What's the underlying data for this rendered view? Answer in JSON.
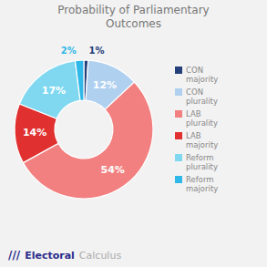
{
  "chart_data": {
    "type": "pie",
    "title": "Probability of Parliamentary\nOutcomes",
    "categories": [
      "CON\nmajority",
      "CON\nplurality",
      "LAB\nplurality",
      "LAB\nmajority",
      "Reform\nplurality",
      "Reform\nmajority"
    ],
    "values": [
      1,
      12,
      54,
      14,
      17,
      2
    ],
    "value_labels": [
      "1%",
      "12%",
      "54%",
      "14%",
      "17%",
      "2%"
    ],
    "colors": [
      "#243f7a",
      "#b0d0f0",
      "#f28080",
      "#e03030",
      "#80d8f0",
      "#30b8e8"
    ],
    "data_labels": true,
    "legend": "right",
    "annotations": [
      "///",
      "Electoral",
      "Calculus"
    ]
  }
}
